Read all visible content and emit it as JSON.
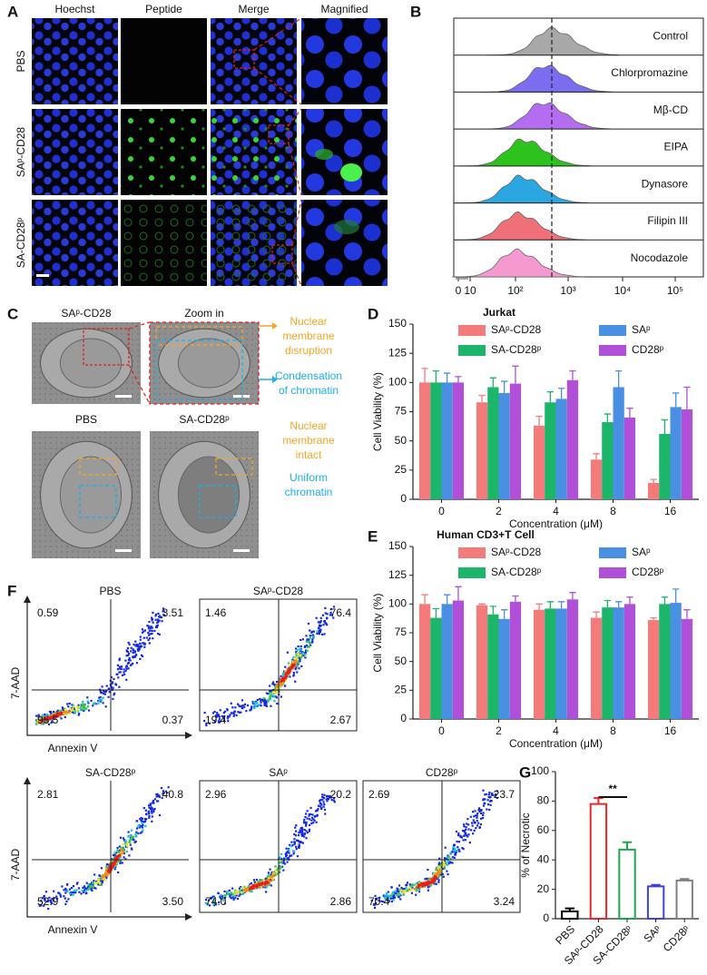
{
  "panel_a": {
    "label": "A",
    "columns": [
      "Hoechst",
      "Peptide",
      "Merge",
      "Magnified"
    ],
    "rows": [
      "PBS",
      "SAᵖ-CD28",
      "SA-CD28ᵖ"
    ]
  },
  "panel_b": {
    "label": "B",
    "conditions": [
      {
        "name": "Control",
        "color": "#a8a8a8"
      },
      {
        "name": "Chlorpromazine",
        "color": "#7b6cf0"
      },
      {
        "name": "Mβ-CD",
        "color": "#b46cf0"
      },
      {
        "name": "EIPA",
        "color": "#2ec21e"
      },
      {
        "name": "Dynasore",
        "color": "#2aa6e0"
      },
      {
        "name": "Filipin III",
        "color": "#f0707a"
      },
      {
        "name": "Nocodazole",
        "color": "#f59ad0"
      }
    ],
    "x_tick_labels": [
      "0",
      "10",
      "10²",
      "10³",
      "10⁴",
      "10⁵"
    ]
  },
  "panel_c": {
    "label": "C",
    "image_titles": [
      "SAᵖ-CD28",
      "Zoom in",
      "PBS",
      "SA-CD28ᵖ"
    ],
    "annotations": [
      {
        "lines": [
          "Nuclear",
          "membrane",
          "disruption"
        ],
        "color": "#f5a623"
      },
      {
        "lines": [
          "Condensation",
          "of chromatin"
        ],
        "color": "#1ab0e8"
      },
      {
        "lines": [
          "Nuclear",
          "membrane",
          "intact"
        ],
        "color": "#f5a623"
      },
      {
        "lines": [
          "Uniform",
          "chromatin"
        ],
        "color": "#1ab0e8"
      }
    ]
  },
  "panel_f": {
    "label": "F",
    "y_label": "7-AAD",
    "x_label": "Annexin V",
    "plots": [
      {
        "title": "PBS",
        "quadrants": [
          "0.59",
          "3.51",
          "95.5",
          "0.37"
        ]
      },
      {
        "title": "SAᵖ-CD28",
        "quadrants": [
          "1.46",
          "76.4",
          "19.4",
          "2.67"
        ]
      },
      {
        "title": "SA-CD28ᵖ",
        "quadrants": [
          "2.81",
          "40.8",
          "52.9",
          "3.50"
        ]
      },
      {
        "title": "SAᵖ",
        "quadrants": [
          "2.96",
          "20.2",
          "74.0",
          "2.86"
        ]
      },
      {
        "title": "CD28ᵖ",
        "quadrants": [
          "2.69",
          "23.7",
          "70.4",
          "3.24"
        ]
      }
    ]
  },
  "chart_data": [
    {
      "type": "bar",
      "panel_label": "D",
      "title": "Jurkat",
      "x_label": "Concentration (μM)",
      "y_label": "Cell Viability (%)",
      "categories": [
        "0",
        "2",
        "4",
        "8",
        "16"
      ],
      "series": [
        {
          "name": "SAᵖ-CD28",
          "color": "#f47b7b",
          "values": [
            100,
            83,
            63,
            34,
            14
          ],
          "errors": [
            12,
            6,
            8,
            5,
            3
          ]
        },
        {
          "name": "SA-CD28ᵖ",
          "color": "#1db56a",
          "values": [
            100,
            96,
            83,
            66,
            56
          ],
          "errors": [
            10,
            8,
            9,
            7,
            12
          ]
        },
        {
          "name": "SAᵖ",
          "color": "#4a90e2",
          "values": [
            100,
            91,
            86,
            96,
            79
          ],
          "errors": [
            8,
            10,
            9,
            14,
            12
          ]
        },
        {
          "name": "CD28ᵖ",
          "color": "#b04fd8",
          "values": [
            100,
            99,
            102,
            70,
            77
          ],
          "errors": [
            5,
            15,
            8,
            8,
            19
          ]
        }
      ],
      "ylim": [
        0,
        150
      ],
      "yticks": [
        0,
        25,
        50,
        75,
        100,
        125,
        150
      ]
    },
    {
      "type": "bar",
      "panel_label": "E",
      "title": "Human CD3+T Cell",
      "x_label": "Concentration (μM)",
      "y_label": "Cell Viability (%)",
      "categories": [
        "0",
        "2",
        "4",
        "8",
        "16"
      ],
      "series": [
        {
          "name": "SAᵖ-CD28",
          "color": "#f47b7b",
          "values": [
            100,
            99,
            95,
            88,
            86
          ],
          "errors": [
            8,
            1,
            5,
            5,
            2
          ]
        },
        {
          "name": "SA-CD28ᵖ",
          "color": "#1db56a",
          "values": [
            88,
            91,
            96,
            97,
            100
          ],
          "errors": [
            8,
            7,
            6,
            6,
            6
          ]
        },
        {
          "name": "SAᵖ",
          "color": "#4a90e2",
          "values": [
            100,
            87,
            96,
            97,
            101
          ],
          "errors": [
            8,
            8,
            6,
            5,
            12
          ]
        },
        {
          "name": "CD28ᵖ",
          "color": "#b04fd8",
          "values": [
            103,
            102,
            104,
            100,
            87
          ],
          "errors": [
            12,
            5,
            6,
            6,
            8
          ]
        }
      ],
      "ylim": [
        0,
        150
      ],
      "yticks": [
        0,
        25,
        50,
        75,
        100,
        125,
        150
      ]
    },
    {
      "type": "bar",
      "panel_label": "G",
      "y_label": "% of Necrotic",
      "categories": [
        "PBS",
        "SAᵖ-CD28",
        "SA-CD28ᵖ",
        "SAᵖ",
        "CD28ᵖ"
      ],
      "values": [
        5,
        78,
        47,
        22,
        26
      ],
      "errors": [
        2,
        4,
        5,
        1,
        1
      ],
      "colors": [
        "#000000",
        "#e8262b",
        "#1ea64b",
        "#4040e0",
        "#808080"
      ],
      "ylim": [
        0,
        100
      ],
      "yticks": [
        0,
        20,
        40,
        60,
        80,
        100
      ],
      "annotation": "**"
    }
  ]
}
